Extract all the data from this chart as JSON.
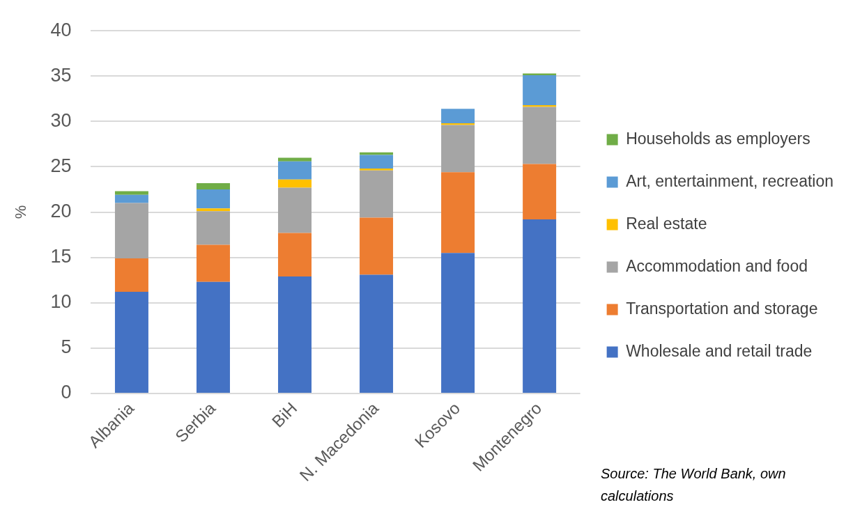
{
  "chart_data": {
    "type": "bar",
    "stacked": true,
    "ylabel": "%",
    "categories": [
      "Albania",
      "Serbia",
      "BiH",
      "N. Macedonia",
      "Kosovo",
      "Montenegro"
    ],
    "series": [
      {
        "name": "Wholesale and retail trade",
        "color": "#4472c4",
        "values": [
          11.2,
          12.3,
          12.9,
          13.1,
          15.5,
          19.2
        ]
      },
      {
        "name": "Transportation and storage",
        "color": "#ed7d31",
        "values": [
          3.7,
          4.1,
          4.8,
          6.3,
          8.9,
          6.1
        ]
      },
      {
        "name": "Accommodation and food",
        "color": "#a5a5a5",
        "values": [
          6.1,
          3.7,
          5.0,
          5.2,
          5.2,
          6.3
        ]
      },
      {
        "name": "Real estate",
        "color": "#ffc000",
        "values": [
          0,
          0.3,
          0.9,
          0.2,
          0.2,
          0.2
        ]
      },
      {
        "name": "Art, entertainment, recreation",
        "color": "#5b9bd5",
        "values": [
          0.9,
          2.1,
          2.0,
          1.5,
          1.6,
          3.3
        ]
      },
      {
        "name": "Households as employers",
        "color": "#70ad47",
        "values": [
          0.4,
          0.7,
          0.4,
          0.3,
          0,
          0.2
        ]
      }
    ],
    "ylim": [
      0,
      40
    ],
    "yticks": [
      0,
      5,
      10,
      15,
      20,
      25,
      30,
      35,
      40
    ],
    "grid": "y",
    "legend": "right",
    "annotations": [
      "Source: The World Bank, own calculations"
    ]
  }
}
